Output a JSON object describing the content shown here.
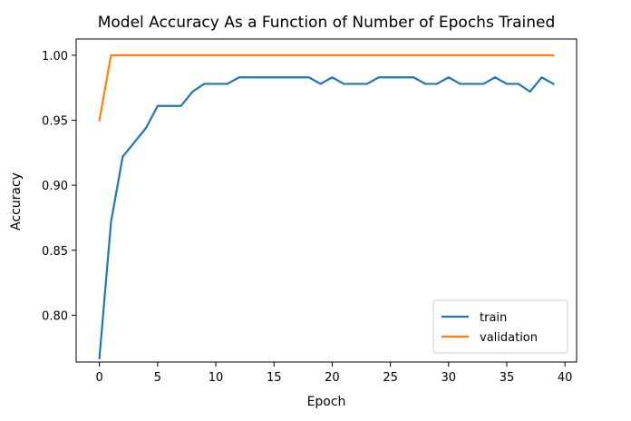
{
  "chart_data": {
    "type": "line",
    "title": "Model Accuracy As a Function of Number of Epochs Trained",
    "xlabel": "Epoch",
    "ylabel": "Accuracy",
    "xlim": [
      -2,
      41
    ],
    "ylim": [
      0.764,
      1.0125
    ],
    "xticks": [
      0,
      5,
      10,
      15,
      20,
      25,
      30,
      35,
      40
    ],
    "yticks": [
      0.8,
      0.85,
      0.9,
      0.95,
      1.0
    ],
    "xtick_labels": [
      "0",
      "5",
      "10",
      "15",
      "20",
      "25",
      "30",
      "35",
      "40"
    ],
    "ytick_labels": [
      "0.80",
      "0.85",
      "0.90",
      "0.95",
      "1.00"
    ],
    "grid": false,
    "legend_position": "lower-right",
    "x": [
      0,
      1,
      2,
      3,
      4,
      5,
      6,
      7,
      8,
      9,
      10,
      11,
      12,
      13,
      14,
      15,
      16,
      17,
      18,
      19,
      20,
      21,
      22,
      23,
      24,
      25,
      26,
      27,
      28,
      29,
      30,
      31,
      32,
      33,
      34,
      35,
      36,
      37,
      38,
      39
    ],
    "series": [
      {
        "name": "train",
        "color": "#1f77b4",
        "values": [
          0.767,
          0.872,
          0.922,
          0.933,
          0.944,
          0.961,
          0.961,
          0.961,
          0.972,
          0.978,
          0.978,
          0.978,
          0.983,
          0.983,
          0.983,
          0.983,
          0.983,
          0.983,
          0.983,
          0.978,
          0.983,
          0.978,
          0.978,
          0.978,
          0.983,
          0.983,
          0.983,
          0.983,
          0.978,
          0.978,
          0.983,
          0.978,
          0.978,
          0.978,
          0.983,
          0.978,
          0.978,
          0.972,
          0.983,
          0.978
        ]
      },
      {
        "name": "validation",
        "color": "#ff7f0e",
        "values": [
          0.95,
          1.0,
          1.0,
          1.0,
          1.0,
          1.0,
          1.0,
          1.0,
          1.0,
          1.0,
          1.0,
          1.0,
          1.0,
          1.0,
          1.0,
          1.0,
          1.0,
          1.0,
          1.0,
          1.0,
          1.0,
          1.0,
          1.0,
          1.0,
          1.0,
          1.0,
          1.0,
          1.0,
          1.0,
          1.0,
          1.0,
          1.0,
          1.0,
          1.0,
          1.0,
          1.0,
          1.0,
          1.0,
          1.0,
          1.0
        ]
      }
    ]
  }
}
